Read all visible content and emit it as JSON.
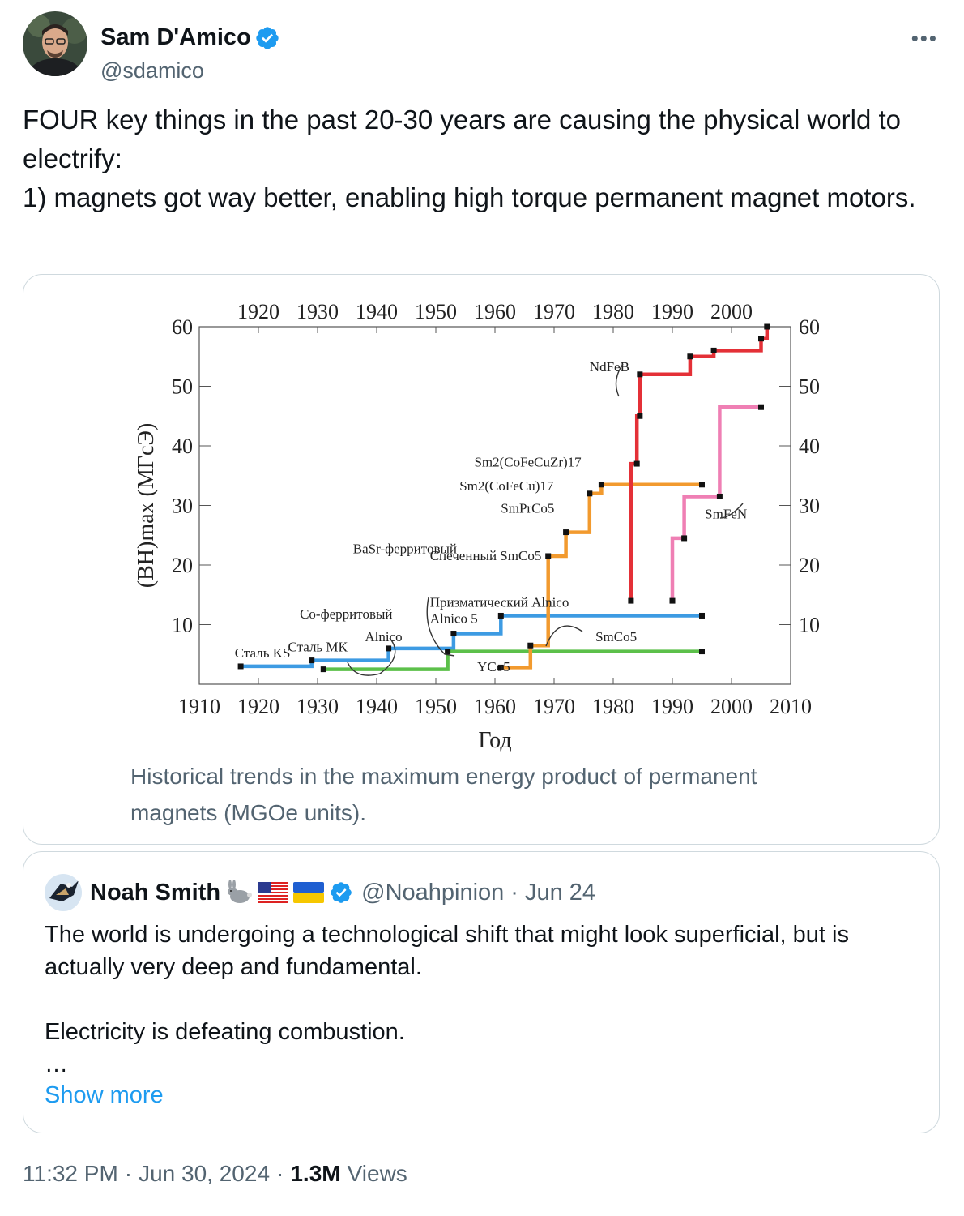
{
  "author": {
    "name": "Sam D'Amico",
    "handle": "@sdamico"
  },
  "tweet": {
    "lines": [
      "FOUR key things in the past 20-30 years are causing the physical world to electrify:",
      "1) magnets got way better, enabling high torque permanent magnet motors."
    ]
  },
  "media": {
    "caption": "Historical trends in the maximum energy product of permanent magnets (MGOe units)."
  },
  "chart_data": {
    "type": "line",
    "step": true,
    "title": "",
    "xlabel": "Год",
    "ylabel": "(BH)max (МГсЭ)",
    "xlim": [
      1910,
      2010
    ],
    "ylim": [
      0,
      60
    ],
    "x_ticks_bottom": [
      "1910",
      "1920",
      "1930",
      "1940",
      "1950",
      "1960",
      "1970",
      "1980",
      "1990",
      "2000",
      "2010"
    ],
    "x_ticks_top": [
      "1920",
      "1930",
      "1940",
      "1950",
      "1960",
      "1970",
      "1980",
      "1990",
      "2000"
    ],
    "y_ticks": [
      "10",
      "20",
      "30",
      "40",
      "50",
      "60"
    ],
    "series": [
      {
        "name": "Alnico",
        "color": "#3d9be3",
        "points": [
          [
            1917,
            3
          ],
          [
            1929,
            3
          ],
          [
            1929,
            4
          ],
          [
            1942,
            4
          ],
          [
            1942,
            6
          ],
          [
            1953,
            6
          ],
          [
            1953,
            8.5
          ],
          [
            1961,
            8.5
          ],
          [
            1961,
            11.5
          ],
          [
            1995,
            11.5
          ]
        ]
      },
      {
        "name": "Ferrite",
        "color": "#5cc04a",
        "points": [
          [
            1931,
            2.5
          ],
          [
            1952,
            2.5
          ],
          [
            1952,
            5.5
          ],
          [
            1995,
            5.5
          ]
        ]
      },
      {
        "name": "SmCo",
        "color": "#f29a2e",
        "points": [
          [
            1961,
            2.8
          ],
          [
            1966,
            2.8
          ],
          [
            1966,
            6.5
          ],
          [
            1969,
            6.5
          ],
          [
            1969,
            21.5
          ],
          [
            1972,
            21.5
          ],
          [
            1972,
            25.5
          ],
          [
            1976,
            25.5
          ],
          [
            1976,
            32
          ],
          [
            1978,
            32
          ],
          [
            1978,
            33.5
          ],
          [
            1995,
            33.5
          ]
        ]
      },
      {
        "name": "NdFeB",
        "color": "#e43037",
        "points": [
          [
            1983,
            14
          ],
          [
            1983,
            37
          ],
          [
            1984,
            37
          ],
          [
            1984,
            45
          ],
          [
            1984.5,
            45
          ],
          [
            1984.5,
            48
          ],
          [
            1984.5,
            52
          ],
          [
            1993,
            52
          ],
          [
            1993,
            55
          ],
          [
            1997,
            55
          ],
          [
            1997,
            56
          ],
          [
            2005,
            56
          ],
          [
            2005,
            58
          ],
          [
            2006,
            58
          ],
          [
            2006,
            60
          ]
        ]
      },
      {
        "name": "SmFeN",
        "color": "#ef7fb4",
        "points": [
          [
            1990,
            14
          ],
          [
            1990,
            24.5
          ],
          [
            1992,
            24.5
          ],
          [
            1992,
            31.5
          ],
          [
            1998,
            31.5
          ],
          [
            1998,
            46.5
          ],
          [
            2005,
            46.5
          ]
        ]
      }
    ],
    "annotations": [
      {
        "text": "Сталь KS",
        "x": 1916,
        "y": 4.5
      },
      {
        "text": "Сталь МК",
        "x": 1925,
        "y": 5.5
      },
      {
        "text": "Co-ферритовый",
        "x": 1927,
        "y": 11
      },
      {
        "text": "Alnico",
        "x": 1938,
        "y": 7.2
      },
      {
        "text": "BaSr-ферритовый",
        "x": 1936,
        "y": 22
      },
      {
        "text": "Призматический Alnico",
        "x": 1949,
        "y": 13
      },
      {
        "text": "Alnico 5",
        "x": 1949,
        "y": 10.3
      },
      {
        "text": "YCo5",
        "x": 1957,
        "y": 2.2
      },
      {
        "text": "SmCo5",
        "x": 1977,
        "y": 7.2
      },
      {
        "text": "Спеченный SmCo5",
        "x": 1949,
        "y": 20.8
      },
      {
        "text": "SmPrCo5",
        "x": 1961,
        "y": 28.8
      },
      {
        "text": "Sm2(CoFeCu)17",
        "x": 1954,
        "y": 32.5
      },
      {
        "text": "Sm2(CoFeCuZr)17",
        "x": 1956.5,
        "y": 36.5
      },
      {
        "text": "NdFeB",
        "x": 1976,
        "y": 52.5
      },
      {
        "text": "SmFeN",
        "x": 1995.5,
        "y": 27.8
      }
    ]
  },
  "quote": {
    "name": "Noah Smith",
    "handle": "@Noahpinion",
    "date": "Jun 24",
    "lines": [
      "The world is undergoing a technological shift that might look superficial, but is actually very deep and fundamental.",
      "",
      "Electricity is defeating combustion.",
      "…"
    ],
    "show_more": "Show more"
  },
  "footer": {
    "time": "11:32 PM",
    "date": "Jun 30, 2024",
    "views_count": "1.3M",
    "views_label": "Views"
  }
}
